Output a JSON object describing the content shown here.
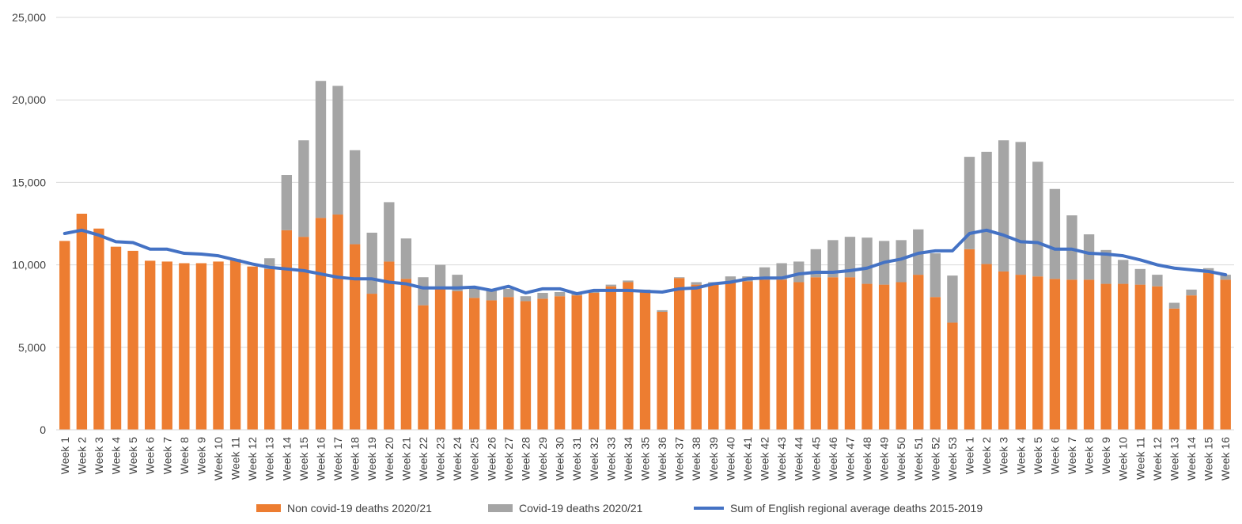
{
  "chart_data": {
    "type": "bar",
    "stacked": true,
    "title": "",
    "xlabel": "",
    "ylabel": "",
    "ylim": [
      0,
      25000
    ],
    "yticks": [
      0,
      5000,
      10000,
      15000,
      20000,
      25000
    ],
    "ytick_labels": [
      "0",
      "5,000",
      "10,000",
      "15,000",
      "20,000",
      "25,000"
    ],
    "grid": true,
    "legend_position": "bottom",
    "colors": {
      "non_covid": "#ed7d31",
      "covid": "#a5a5a5",
      "average": "#4472c4"
    },
    "categories": [
      "Week 1",
      "Week 2",
      "Week 3",
      "Week 4",
      "Week 5",
      "Week 6",
      "Week 7",
      "Week 8",
      "Week 9",
      "Week 10",
      "Week 11",
      "Week 12",
      "Week 13",
      "Week 14",
      "Week 15",
      "Week 16",
      "Week 17",
      "Week 18",
      "Week 19",
      "Week 20",
      "Week 21",
      "Week 22",
      "Week 23",
      "Week 24",
      "Week 25",
      "Week 26",
      "Week 27",
      "Week 28",
      "Week 29",
      "Week 30",
      "Week 31",
      "Week 32",
      "Week 33",
      "Week 34",
      "Week 35",
      "Week 36",
      "Week 37",
      "Week 38",
      "Week 39",
      "Week 40",
      "Week 41",
      "Week 42",
      "Week 43",
      "Week 44",
      "Week 45",
      "Week 46",
      "Week 47",
      "Week 48",
      "Week 49",
      "Week 50",
      "Week 51",
      "Week 52",
      "Week 53",
      "Week 1",
      "Week 2",
      "Week 3",
      "Week 4",
      "Week 5",
      "Week 6",
      "Week 7",
      "Week 8",
      "Week 9",
      "Week 10",
      "Week 11",
      "Week 12",
      "Week 13",
      "Week 14",
      "Week 15",
      "Week 16"
    ],
    "series": [
      {
        "name": "Non covid-19 deaths 2020/21",
        "kind": "bar",
        "values": [
          11450,
          13100,
          12200,
          11100,
          10850,
          10250,
          10200,
          10100,
          10100,
          10200,
          10350,
          9900,
          9750,
          12100,
          11700,
          12850,
          13050,
          11250,
          8250,
          10200,
          9150,
          7550,
          8550,
          8400,
          8000,
          7850,
          8050,
          7800,
          7950,
          8100,
          8150,
          8300,
          8700,
          8950,
          8400,
          7150,
          9200,
          8800,
          8800,
          8950,
          9000,
          9100,
          9100,
          8950,
          9250,
          9250,
          9250,
          8850,
          8800,
          8950,
          9400,
          8050,
          6500,
          10950,
          10050,
          9600,
          9400,
          9300,
          9150,
          9100,
          9100,
          8850,
          8850,
          8800,
          8700,
          7350,
          8150,
          9500,
          9100
        ]
      },
      {
        "name": "Covid-19 deaths 2020/21",
        "kind": "bar",
        "values": [
          0,
          0,
          0,
          0,
          0,
          0,
          0,
          0,
          0,
          0,
          0,
          0,
          650,
          3350,
          5850,
          8300,
          7800,
          5700,
          3700,
          3600,
          2450,
          1700,
          1450,
          1000,
          650,
          650,
          500,
          300,
          350,
          250,
          200,
          150,
          100,
          100,
          100,
          100,
          50,
          150,
          150,
          350,
          300,
          750,
          1000,
          1250,
          1700,
          2250,
          2450,
          2800,
          2650,
          2550,
          2750,
          2650,
          2850,
          5600,
          6800,
          7950,
          8050,
          6950,
          5450,
          3900,
          2750,
          2050,
          1450,
          950,
          700,
          350,
          350,
          300,
          300
        ]
      },
      {
        "name": "Sum of English regional average deaths 2015-2019",
        "kind": "line",
        "values": [
          11900,
          12100,
          11800,
          11400,
          11350,
          10950,
          10950,
          10700,
          10650,
          10550,
          10300,
          10050,
          9850,
          9750,
          9650,
          9450,
          9250,
          9150,
          9150,
          8950,
          8850,
          8600,
          8600,
          8600,
          8650,
          8450,
          8700,
          8300,
          8550,
          8550,
          8250,
          8450,
          8450,
          8450,
          8400,
          8350,
          8550,
          8600,
          8850,
          8950,
          9150,
          9200,
          9200,
          9450,
          9550,
          9550,
          9650,
          9800,
          10150,
          10350,
          10700,
          10850,
          10850,
          11900,
          12100,
          11800,
          11400,
          11350,
          10950,
          10950,
          10700,
          10650,
          10550,
          10300,
          10000,
          9800,
          9700,
          9600,
          9400
        ]
      }
    ]
  }
}
